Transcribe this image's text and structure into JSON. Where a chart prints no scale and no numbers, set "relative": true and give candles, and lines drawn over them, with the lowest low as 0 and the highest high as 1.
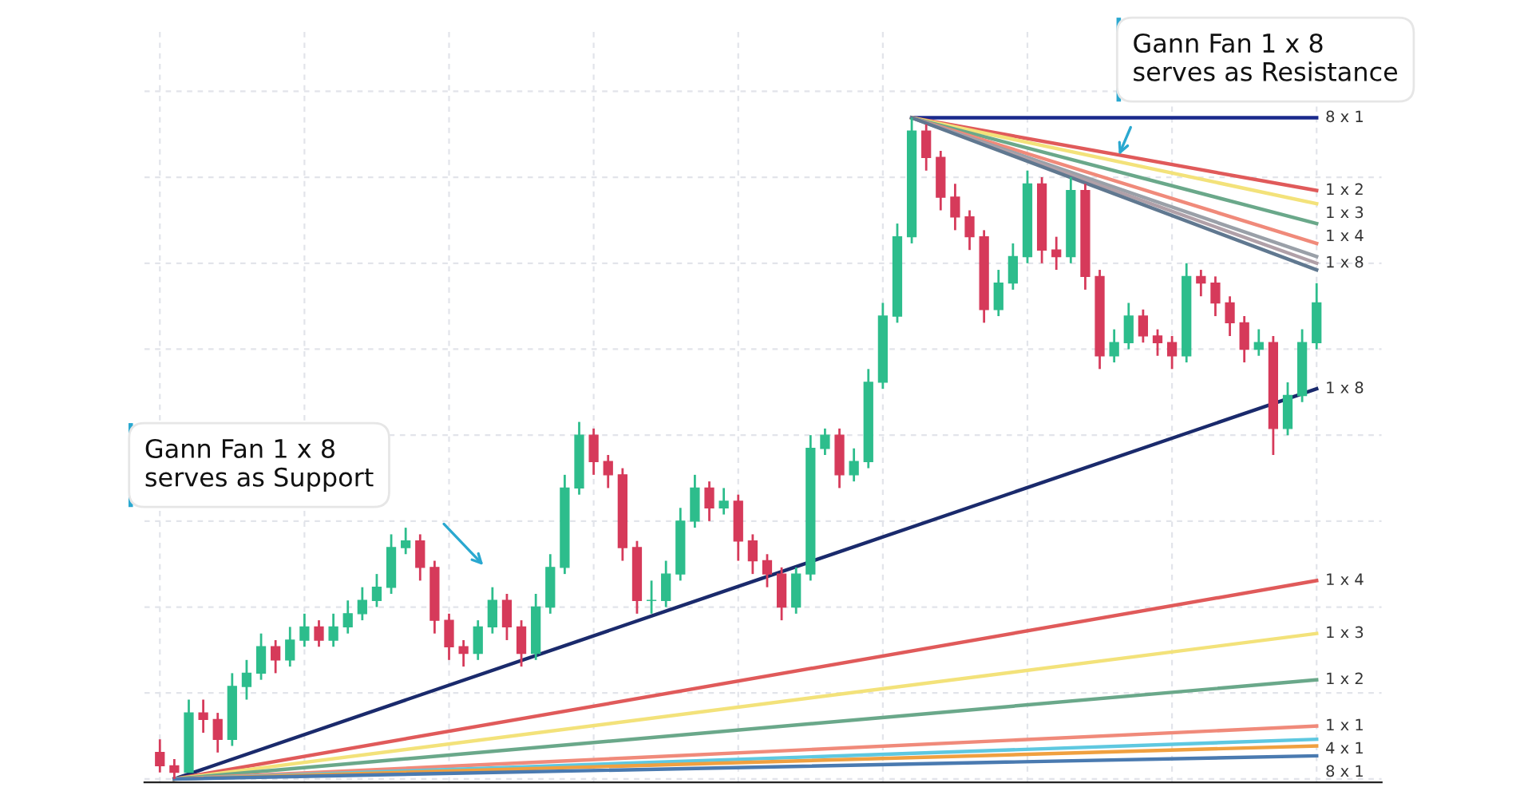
{
  "chart_data": {
    "type": "candlestick",
    "relative": true,
    "grid": true,
    "tick_labels": false,
    "categories": [
      null,
      null,
      null,
      null,
      null,
      null,
      null,
      null,
      null,
      null,
      null,
      null,
      null,
      null,
      null,
      null,
      null,
      null,
      null,
      null,
      null,
      null,
      null,
      null,
      null,
      null,
      null,
      null,
      null,
      null,
      null,
      null,
      null,
      null,
      null,
      null,
      null,
      null,
      null,
      null,
      null,
      null,
      null,
      null,
      null,
      null,
      null,
      null,
      null,
      null,
      null,
      null,
      null,
      null,
      null,
      null,
      null,
      null,
      null,
      null,
      null,
      null,
      null,
      null,
      null,
      null,
      null,
      null,
      null,
      null,
      null,
      null,
      null,
      null,
      null,
      null,
      null,
      null,
      null,
      null,
      null
    ],
    "ohlc": [
      [
        0.04,
        0.06,
        0.01,
        0.02
      ],
      [
        0.02,
        0.03,
        0,
        0.01
      ],
      [
        0.01,
        0.12,
        0.01,
        0.1
      ],
      [
        0.1,
        0.12,
        0.07,
        0.09
      ],
      [
        0.09,
        0.1,
        0.04,
        0.06
      ],
      [
        0.06,
        0.16,
        0.05,
        0.14
      ],
      [
        0.14,
        0.18,
        0.12,
        0.16
      ],
      [
        0.16,
        0.22,
        0.15,
        0.2
      ],
      [
        0.2,
        0.21,
        0.16,
        0.18
      ],
      [
        0.18,
        0.23,
        0.17,
        0.21
      ],
      [
        0.21,
        0.25,
        0.2,
        0.23
      ],
      [
        0.23,
        0.24,
        0.2,
        0.21
      ],
      [
        0.21,
        0.25,
        0.2,
        0.23
      ],
      [
        0.23,
        0.27,
        0.22,
        0.25
      ],
      [
        0.25,
        0.29,
        0.24,
        0.27
      ],
      [
        0.27,
        0.31,
        0.26,
        0.29
      ],
      [
        0.29,
        0.37,
        0.28,
        0.35
      ],
      [
        0.35,
        0.38,
        0.34,
        0.36
      ],
      [
        0.36,
        0.37,
        0.3,
        0.32
      ],
      [
        0.32,
        0.33,
        0.22,
        0.24
      ],
      [
        0.24,
        0.25,
        0.18,
        0.2
      ],
      [
        0.2,
        0.21,
        0.17,
        0.19
      ],
      [
        0.19,
        0.24,
        0.18,
        0.23
      ],
      [
        0.23,
        0.29,
        0.22,
        0.27
      ],
      [
        0.27,
        0.28,
        0.21,
        0.23
      ],
      [
        0.23,
        0.24,
        0.17,
        0.19
      ],
      [
        0.19,
        0.28,
        0.18,
        0.26
      ],
      [
        0.26,
        0.34,
        0.25,
        0.32
      ],
      [
        0.32,
        0.46,
        0.31,
        0.44
      ],
      [
        0.44,
        0.54,
        0.43,
        0.52
      ],
      [
        0.52,
        0.53,
        0.46,
        0.48
      ],
      [
        0.48,
        0.49,
        0.44,
        0.46
      ],
      [
        0.46,
        0.47,
        0.33,
        0.35
      ],
      [
        0.35,
        0.36,
        0.25,
        0.27
      ],
      [
        0.27,
        0.3,
        0.25,
        0.27
      ],
      [
        0.27,
        0.33,
        0.26,
        0.31
      ],
      [
        0.31,
        0.41,
        0.3,
        0.39
      ],
      [
        0.39,
        0.46,
        0.38,
        0.44
      ],
      [
        0.44,
        0.45,
        0.39,
        0.41
      ],
      [
        0.41,
        0.44,
        0.4,
        0.42
      ],
      [
        0.42,
        0.43,
        0.33,
        0.36
      ],
      [
        0.36,
        0.37,
        0.31,
        0.33
      ],
      [
        0.33,
        0.34,
        0.29,
        0.31
      ],
      [
        0.31,
        0.32,
        0.24,
        0.26
      ],
      [
        0.26,
        0.32,
        0.25,
        0.31
      ],
      [
        0.31,
        0.52,
        0.3,
        0.5
      ],
      [
        0.5,
        0.53,
        0.49,
        0.52
      ],
      [
        0.52,
        0.53,
        0.44,
        0.46
      ],
      [
        0.46,
        0.5,
        0.45,
        0.48
      ],
      [
        0.48,
        0.62,
        0.47,
        0.6
      ],
      [
        0.6,
        0.72,
        0.59,
        0.7
      ],
      [
        0.7,
        0.84,
        0.69,
        0.82
      ],
      [
        0.82,
        1.0,
        0.81,
        0.98
      ],
      [
        0.98,
        0.99,
        0.92,
        0.94
      ],
      [
        0.94,
        0.95,
        0.86,
        0.88
      ],
      [
        0.88,
        0.9,
        0.83,
        0.85
      ],
      [
        0.85,
        0.86,
        0.8,
        0.82
      ],
      [
        0.82,
        0.83,
        0.69,
        0.71
      ],
      [
        0.71,
        0.77,
        0.7,
        0.75
      ],
      [
        0.75,
        0.81,
        0.74,
        0.79
      ],
      [
        0.79,
        0.92,
        0.78,
        0.9
      ],
      [
        0.9,
        0.91,
        0.78,
        0.8
      ],
      [
        0.8,
        0.82,
        0.77,
        0.79
      ],
      [
        0.79,
        0.91,
        0.78,
        0.89
      ],
      [
        0.89,
        0.9,
        0.74,
        0.76
      ],
      [
        0.76,
        0.77,
        0.62,
        0.64
      ],
      [
        0.64,
        0.68,
        0.63,
        0.66
      ],
      [
        0.66,
        0.72,
        0.65,
        0.7
      ],
      [
        0.7,
        0.71,
        0.66,
        0.67
      ],
      [
        0.67,
        0.68,
        0.64,
        0.66
      ],
      [
        0.66,
        0.67,
        0.62,
        0.64
      ],
      [
        0.64,
        0.78,
        0.63,
        0.76
      ],
      [
        0.76,
        0.77,
        0.73,
        0.75
      ],
      [
        0.75,
        0.76,
        0.7,
        0.72
      ],
      [
        0.72,
        0.73,
        0.67,
        0.69
      ],
      [
        0.69,
        0.7,
        0.63,
        0.65
      ],
      [
        0.65,
        0.68,
        0.64,
        0.66
      ],
      [
        0.66,
        0.67,
        0.49,
        0.53
      ],
      [
        0.53,
        0.6,
        0.52,
        0.58
      ],
      [
        0.58,
        0.68,
        0.57,
        0.66
      ],
      [
        0.66,
        0.75,
        0.65,
        0.72
      ]
    ],
    "series": [
      {
        "type": "line",
        "name": "1 x 8",
        "color": "#1a2a6c",
        "values": [
          null,
          0,
          null,
          null,
          null,
          null,
          null,
          null,
          null,
          null,
          null,
          null,
          null,
          null,
          null,
          null,
          null,
          null,
          null,
          null,
          null,
          null,
          null,
          null,
          null,
          null,
          null,
          null,
          null,
          null,
          null,
          null,
          null,
          null,
          null,
          null,
          null,
          null,
          null,
          null,
          null,
          null,
          null,
          null,
          null,
          null,
          null,
          null,
          null,
          null,
          null,
          null,
          null,
          null,
          null,
          null,
          null,
          null,
          null,
          null,
          null,
          null,
          null,
          null,
          null,
          null,
          null,
          null,
          null,
          null,
          null,
          null,
          null,
          null,
          null,
          null,
          null,
          null,
          null,
          null,
          0.59
        ]
      },
      {
        "type": "line",
        "name": "1 x 4",
        "color": "#e05a5a",
        "values": [
          null,
          0,
          null,
          null,
          null,
          null,
          null,
          null,
          null,
          null,
          null,
          null,
          null,
          null,
          null,
          null,
          null,
          null,
          null,
          null,
          null,
          null,
          null,
          null,
          null,
          null,
          null,
          null,
          null,
          null,
          null,
          null,
          null,
          null,
          null,
          null,
          null,
          null,
          null,
          null,
          null,
          null,
          null,
          null,
          null,
          null,
          null,
          null,
          null,
          null,
          null,
          null,
          null,
          null,
          null,
          null,
          null,
          null,
          null,
          null,
          null,
          null,
          null,
          null,
          null,
          null,
          null,
          null,
          null,
          null,
          null,
          null,
          null,
          null,
          null,
          null,
          null,
          null,
          null,
          null,
          0.3
        ]
      },
      {
        "type": "line",
        "name": "1 x 3",
        "color": "#f3e27a",
        "values": [
          null,
          0,
          null,
          null,
          null,
          null,
          null,
          null,
          null,
          null,
          null,
          null,
          null,
          null,
          null,
          null,
          null,
          null,
          null,
          null,
          null,
          null,
          null,
          null,
          null,
          null,
          null,
          null,
          null,
          null,
          null,
          null,
          null,
          null,
          null,
          null,
          null,
          null,
          null,
          null,
          null,
          null,
          null,
          null,
          null,
          null,
          null,
          null,
          null,
          null,
          null,
          null,
          null,
          null,
          null,
          null,
          null,
          null,
          null,
          null,
          null,
          null,
          null,
          null,
          null,
          null,
          null,
          null,
          null,
          null,
          null,
          null,
          null,
          null,
          null,
          null,
          null,
          null,
          null,
          null,
          0.22
        ]
      },
      {
        "type": "line",
        "name": "1 x 2",
        "color": "#6aa88a",
        "values": [
          null,
          0,
          null,
          null,
          null,
          null,
          null,
          null,
          null,
          null,
          null,
          null,
          null,
          null,
          null,
          null,
          null,
          null,
          null,
          null,
          null,
          null,
          null,
          null,
          null,
          null,
          null,
          null,
          null,
          null,
          null,
          null,
          null,
          null,
          null,
          null,
          null,
          null,
          null,
          null,
          null,
          null,
          null,
          null,
          null,
          null,
          null,
          null,
          null,
          null,
          null,
          null,
          null,
          null,
          null,
          null,
          null,
          null,
          null,
          null,
          null,
          null,
          null,
          null,
          null,
          null,
          null,
          null,
          null,
          null,
          null,
          null,
          null,
          null,
          null,
          null,
          null,
          null,
          null,
          null,
          0.15
        ]
      },
      {
        "type": "line",
        "name": "1 x 1",
        "color": "#f08a7a",
        "values": [
          null,
          0,
          null,
          null,
          null,
          null,
          null,
          null,
          null,
          null,
          null,
          null,
          null,
          null,
          null,
          null,
          null,
          null,
          null,
          null,
          null,
          null,
          null,
          null,
          null,
          null,
          null,
          null,
          null,
          null,
          null,
          null,
          null,
          null,
          null,
          null,
          null,
          null,
          null,
          null,
          null,
          null,
          null,
          null,
          null,
          null,
          null,
          null,
          null,
          null,
          null,
          null,
          null,
          null,
          null,
          null,
          null,
          null,
          null,
          null,
          null,
          null,
          null,
          null,
          null,
          null,
          null,
          null,
          null,
          null,
          null,
          null,
          null,
          null,
          null,
          null,
          null,
          null,
          null,
          null,
          0.08
        ]
      },
      {
        "type": "line",
        "color": "#5ec8e0",
        "values": [
          null,
          0,
          null,
          null,
          null,
          null,
          null,
          null,
          null,
          null,
          null,
          null,
          null,
          null,
          null,
          null,
          null,
          null,
          null,
          null,
          null,
          null,
          null,
          null,
          null,
          null,
          null,
          null,
          null,
          null,
          null,
          null,
          null,
          null,
          null,
          null,
          null,
          null,
          null,
          null,
          null,
          null,
          null,
          null,
          null,
          null,
          null,
          null,
          null,
          null,
          null,
          null,
          null,
          null,
          null,
          null,
          null,
          null,
          null,
          null,
          null,
          null,
          null,
          null,
          null,
          null,
          null,
          null,
          null,
          null,
          null,
          null,
          null,
          null,
          null,
          null,
          null,
          null,
          null,
          null,
          0.06
        ]
      },
      {
        "type": "line",
        "name": "4 x 1",
        "color": "#f0a040",
        "values": [
          null,
          0,
          null,
          null,
          null,
          null,
          null,
          null,
          null,
          null,
          null,
          null,
          null,
          null,
          null,
          null,
          null,
          null,
          null,
          null,
          null,
          null,
          null,
          null,
          null,
          null,
          null,
          null,
          null,
          null,
          null,
          null,
          null,
          null,
          null,
          null,
          null,
          null,
          null,
          null,
          null,
          null,
          null,
          null,
          null,
          null,
          null,
          null,
          null,
          null,
          null,
          null,
          null,
          null,
          null,
          null,
          null,
          null,
          null,
          null,
          null,
          null,
          null,
          null,
          null,
          null,
          null,
          null,
          null,
          null,
          null,
          null,
          null,
          null,
          null,
          null,
          null,
          null,
          null,
          null,
          0.05
        ]
      },
      {
        "type": "line",
        "name": "8 x 1",
        "color": "#4a7ab0",
        "values": [
          null,
          0,
          null,
          null,
          null,
          null,
          null,
          null,
          null,
          null,
          null,
          null,
          null,
          null,
          null,
          null,
          null,
          null,
          null,
          null,
          null,
          null,
          null,
          null,
          null,
          null,
          null,
          null,
          null,
          null,
          null,
          null,
          null,
          null,
          null,
          null,
          null,
          null,
          null,
          null,
          null,
          null,
          null,
          null,
          null,
          null,
          null,
          null,
          null,
          null,
          null,
          null,
          null,
          null,
          null,
          null,
          null,
          null,
          null,
          null,
          null,
          null,
          null,
          null,
          null,
          null,
          null,
          null,
          null,
          null,
          null,
          null,
          null,
          null,
          null,
          null,
          null,
          null,
          null,
          null,
          0.035
        ]
      },
      {
        "type": "line",
        "name": "8 x 1",
        "color": "#1a2a8c",
        "values": [
          null,
          null,
          null,
          null,
          null,
          null,
          null,
          null,
          null,
          null,
          null,
          null,
          null,
          null,
          null,
          null,
          null,
          null,
          null,
          null,
          null,
          null,
          null,
          null,
          null,
          null,
          null,
          null,
          null,
          null,
          null,
          null,
          null,
          null,
          null,
          null,
          null,
          null,
          null,
          null,
          null,
          null,
          null,
          null,
          null,
          null,
          null,
          null,
          null,
          null,
          null,
          null,
          1.0,
          null,
          null,
          null,
          null,
          null,
          null,
          null,
          null,
          null,
          null,
          null,
          null,
          null,
          null,
          null,
          null,
          null,
          null,
          null,
          null,
          null,
          null,
          null,
          null,
          null,
          null,
          null,
          1.0
        ]
      },
      {
        "type": "line",
        "name": "1 x 2",
        "color": "#e05a5a",
        "values": [
          null,
          null,
          null,
          null,
          null,
          null,
          null,
          null,
          null,
          null,
          null,
          null,
          null,
          null,
          null,
          null,
          null,
          null,
          null,
          null,
          null,
          null,
          null,
          null,
          null,
          null,
          null,
          null,
          null,
          null,
          null,
          null,
          null,
          null,
          null,
          null,
          null,
          null,
          null,
          null,
          null,
          null,
          null,
          null,
          null,
          null,
          null,
          null,
          null,
          null,
          null,
          null,
          1.0,
          null,
          null,
          null,
          null,
          null,
          null,
          null,
          null,
          null,
          null,
          null,
          null,
          null,
          null,
          null,
          null,
          null,
          null,
          null,
          null,
          null,
          null,
          null,
          null,
          null,
          null,
          null,
          0.89
        ]
      },
      {
        "type": "line",
        "name": "1 x 3",
        "color": "#f3e27a",
        "values": [
          null,
          null,
          null,
          null,
          null,
          null,
          null,
          null,
          null,
          null,
          null,
          null,
          null,
          null,
          null,
          null,
          null,
          null,
          null,
          null,
          null,
          null,
          null,
          null,
          null,
          null,
          null,
          null,
          null,
          null,
          null,
          null,
          null,
          null,
          null,
          null,
          null,
          null,
          null,
          null,
          null,
          null,
          null,
          null,
          null,
          null,
          null,
          null,
          null,
          null,
          null,
          null,
          1.0,
          null,
          null,
          null,
          null,
          null,
          null,
          null,
          null,
          null,
          null,
          null,
          null,
          null,
          null,
          null,
          null,
          null,
          null,
          null,
          null,
          null,
          null,
          null,
          null,
          null,
          null,
          null,
          0.87
        ]
      },
      {
        "type": "line",
        "name": "1 x 4",
        "color": "#6aa88a",
        "values": [
          null,
          null,
          null,
          null,
          null,
          null,
          null,
          null,
          null,
          null,
          null,
          null,
          null,
          null,
          null,
          null,
          null,
          null,
          null,
          null,
          null,
          null,
          null,
          null,
          null,
          null,
          null,
          null,
          null,
          null,
          null,
          null,
          null,
          null,
          null,
          null,
          null,
          null,
          null,
          null,
          null,
          null,
          null,
          null,
          null,
          null,
          null,
          null,
          null,
          null,
          null,
          null,
          1.0,
          null,
          null,
          null,
          null,
          null,
          null,
          null,
          null,
          null,
          null,
          null,
          null,
          null,
          null,
          null,
          null,
          null,
          null,
          null,
          null,
          null,
          null,
          null,
          null,
          null,
          null,
          null,
          0.84
        ]
      },
      {
        "type": "line",
        "color": "#f08a7a",
        "values": [
          null,
          null,
          null,
          null,
          null,
          null,
          null,
          null,
          null,
          null,
          null,
          null,
          null,
          null,
          null,
          null,
          null,
          null,
          null,
          null,
          null,
          null,
          null,
          null,
          null,
          null,
          null,
          null,
          null,
          null,
          null,
          null,
          null,
          null,
          null,
          null,
          null,
          null,
          null,
          null,
          null,
          null,
          null,
          null,
          null,
          null,
          null,
          null,
          null,
          null,
          null,
          null,
          1.0,
          null,
          null,
          null,
          null,
          null,
          null,
          null,
          null,
          null,
          null,
          null,
          null,
          null,
          null,
          null,
          null,
          null,
          null,
          null,
          null,
          null,
          null,
          null,
          null,
          null,
          null,
          null,
          0.81
        ]
      },
      {
        "type": "line",
        "color": "#9aa0a8",
        "values": [
          null,
          null,
          null,
          null,
          null,
          null,
          null,
          null,
          null,
          null,
          null,
          null,
          null,
          null,
          null,
          null,
          null,
          null,
          null,
          null,
          null,
          null,
          null,
          null,
          null,
          null,
          null,
          null,
          null,
          null,
          null,
          null,
          null,
          null,
          null,
          null,
          null,
          null,
          null,
          null,
          null,
          null,
          null,
          null,
          null,
          null,
          null,
          null,
          null,
          null,
          null,
          null,
          1.0,
          null,
          null,
          null,
          null,
          null,
          null,
          null,
          null,
          null,
          null,
          null,
          null,
          null,
          null,
          null,
          null,
          null,
          null,
          null,
          null,
          null,
          null,
          null,
          null,
          null,
          null,
          null,
          0.79
        ]
      },
      {
        "type": "line",
        "name": "1 x 8",
        "color": "#b0a0a8",
        "values": [
          null,
          null,
          null,
          null,
          null,
          null,
          null,
          null,
          null,
          null,
          null,
          null,
          null,
          null,
          null,
          null,
          null,
          null,
          null,
          null,
          null,
          null,
          null,
          null,
          null,
          null,
          null,
          null,
          null,
          null,
          null,
          null,
          null,
          null,
          null,
          null,
          null,
          null,
          null,
          null,
          null,
          null,
          null,
          null,
          null,
          null,
          null,
          null,
          null,
          null,
          null,
          null,
          1.0,
          null,
          null,
          null,
          null,
          null,
          null,
          null,
          null,
          null,
          null,
          null,
          null,
          null,
          null,
          null,
          null,
          null,
          null,
          null,
          null,
          null,
          null,
          null,
          null,
          null,
          null,
          null,
          0.78
        ]
      },
      {
        "type": "line",
        "color": "#607890",
        "values": [
          null,
          null,
          null,
          null,
          null,
          null,
          null,
          null,
          null,
          null,
          null,
          null,
          null,
          null,
          null,
          null,
          null,
          null,
          null,
          null,
          null,
          null,
          null,
          null,
          null,
          null,
          null,
          null,
          null,
          null,
          null,
          null,
          null,
          null,
          null,
          null,
          null,
          null,
          null,
          null,
          null,
          null,
          null,
          null,
          null,
          null,
          null,
          null,
          null,
          null,
          null,
          null,
          1.0,
          null,
          null,
          null,
          null,
          null,
          null,
          null,
          null,
          null,
          null,
          null,
          null,
          null,
          null,
          null,
          null,
          null,
          null,
          null,
          null,
          null,
          null,
          null,
          null,
          null,
          null,
          null,
          0.77
        ]
      }
    ],
    "annotations": [
      "Gann Fan 1 x 8\nserves as Resistance",
      "Gann Fan 1 x 8\nserves as Support"
    ]
  }
}
